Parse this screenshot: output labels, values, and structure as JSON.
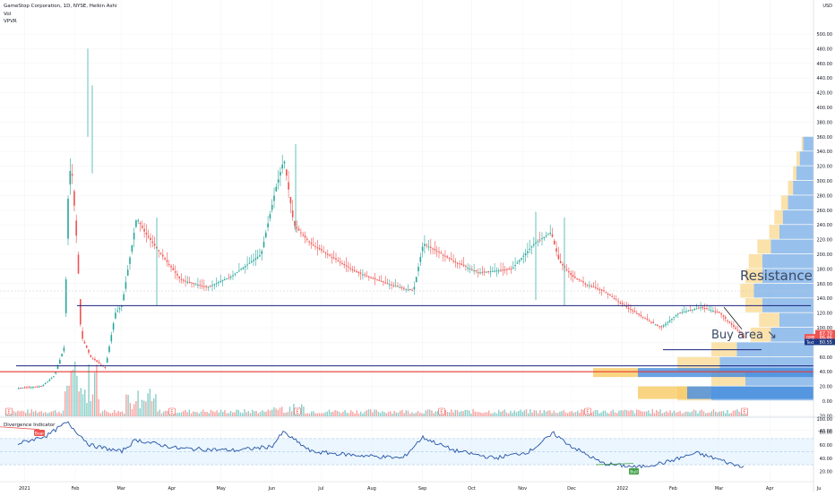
{
  "header": {
    "title": "GameStop Corporation, 1D, NYSE, Heikin Ashi",
    "vol_label": "Vol",
    "vpvr_label": "VPVR"
  },
  "price_axis": {
    "currency": "USD",
    "ticks": [
      "500.00",
      "480.00",
      "460.00",
      "440.00",
      "420.00",
      "400.00",
      "380.00",
      "360.00",
      "340.00",
      "320.00",
      "300.00",
      "280.00",
      "260.00",
      "240.00",
      "220.00",
      "200.00",
      "180.00",
      "160.00",
      "140.00",
      "120.00",
      "100.00",
      "80.00",
      "60.00",
      "40.00",
      "20.00",
      "0.00",
      "-20.00",
      "-40.00"
    ],
    "badges": [
      {
        "text": "87.70",
        "color": "#ef5350"
      },
      {
        "text": "86.46",
        "color": "#ef5350",
        "label": "GME"
      },
      {
        "text": "80.55",
        "color": "#1e3a8a",
        "label": "Text"
      }
    ]
  },
  "time_axis": {
    "labels": [
      "2021",
      "Feb",
      "Mar",
      "Apr",
      "May",
      "Jun",
      "Jul",
      "Aug",
      "Sep",
      "Oct",
      "Nov",
      "Dec",
      "2022",
      "Feb",
      "Mar",
      "Apr",
      "Ju"
    ]
  },
  "event_markers": [
    "E",
    "E",
    "E",
    "E",
    "E",
    "E"
  ],
  "annotations": {
    "resistance": "Resistance",
    "buy_area": "Buy area ↘"
  },
  "indicator": {
    "title": "Divergence Indicator",
    "ticks": [
      "100.00",
      "80.00",
      "60.00",
      "40.00",
      "20.00"
    ],
    "bear_label": "Bear",
    "bull_label": "Bull"
  },
  "colors": {
    "up": "#26a69a",
    "down": "#ef5350",
    "resistance_line": "#1a237e",
    "support_line": "#e53935",
    "vpvr_up": "#2f7fd8",
    "vpvr_down": "#f6c453",
    "rsi_line": "#2453a6"
  },
  "chart_data": {
    "type": "candlestick",
    "title": "GameStop Corporation, 1D, NYSE, Heikin Ashi",
    "ylim": [
      -50,
      505
    ],
    "close_series": {
      "x": [
        "2020-12-28",
        "2021-01-11",
        "2021-01-19",
        "2021-01-25",
        "2021-01-27",
        "2021-01-29",
        "2021-02-02",
        "2021-02-04",
        "2021-02-10",
        "2021-02-19",
        "2021-02-25",
        "2021-03-01",
        "2021-03-10",
        "2021-03-15",
        "2021-03-25",
        "2021-04-06",
        "2021-04-22",
        "2021-05-07",
        "2021-05-25",
        "2021-06-03",
        "2021-06-08",
        "2021-06-14",
        "2021-06-24",
        "2021-07-08",
        "2021-07-23",
        "2021-08-10",
        "2021-08-26",
        "2021-09-01",
        "2021-09-20",
        "2021-10-05",
        "2021-10-25",
        "2021-11-08",
        "2021-11-18",
        "2021-11-23",
        "2021-12-01",
        "2021-12-09",
        "2021-12-20",
        "2022-01-05",
        "2022-01-24",
        "2022-02-04",
        "2022-02-18",
        "2022-03-01",
        "2022-03-10",
        "2022-03-16"
      ],
      "y": [
        18,
        20,
        35,
        75,
        270,
        330,
        200,
        90,
        60,
        45,
        120,
        130,
        250,
        230,
        200,
        165,
        155,
        170,
        200,
        290,
        330,
        240,
        215,
        195,
        175,
        160,
        150,
        215,
        190,
        175,
        180,
        215,
        230,
        190,
        170,
        160,
        150,
        125,
        100,
        120,
        128,
        120,
        100,
        86.46
      ]
    },
    "levels": {
      "resistance": 130,
      "support_blue": 48,
      "support_red": 40,
      "buy_area_line": 70
    },
    "indicator_series": {
      "name": "Divergence Indicator",
      "x": [
        "2020-12-28",
        "2021-01-15",
        "2021-01-27",
        "2021-02-10",
        "2021-03-01",
        "2021-03-10",
        "2021-04-05",
        "2021-05-10",
        "2021-06-01",
        "2021-06-08",
        "2021-06-25",
        "2021-07-20",
        "2021-08-20",
        "2021-09-01",
        "2021-09-20",
        "2021-10-15",
        "2021-11-05",
        "2021-11-20",
        "2021-12-01",
        "2021-12-20",
        "2022-01-10",
        "2022-01-28",
        "2022-02-15",
        "2022-03-01",
        "2022-03-10",
        "2022-03-16"
      ],
      "y": [
        62,
        75,
        95,
        60,
        50,
        68,
        55,
        52,
        58,
        80,
        50,
        45,
        40,
        72,
        52,
        40,
        50,
        78,
        58,
        32,
        26,
        34,
        48,
        38,
        30,
        28
      ]
    },
    "indicator_ylim": [
      0,
      100
    ],
    "grid": true,
    "legend": "none"
  }
}
